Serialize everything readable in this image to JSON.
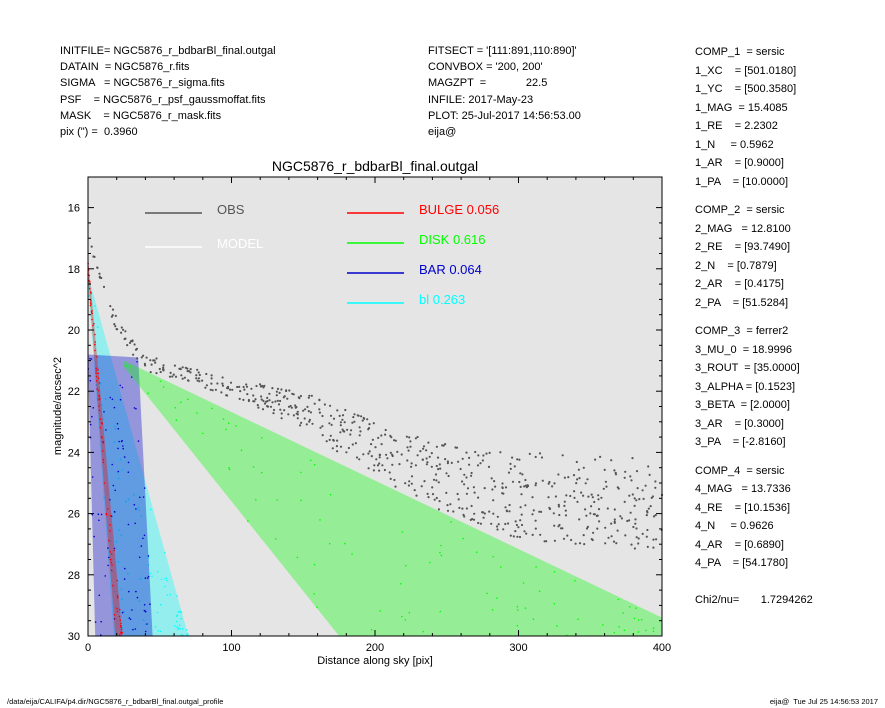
{
  "header_left": [
    "INITFILE= NGC5876_r_bdbarBl_final.outgal",
    "DATAIN  = NGC5876_r.fits",
    "SIGMA   = NGC5876_r_sigma.fits",
    "PSF    = NGC5876_r_psf_gaussmoffat.fits",
    "MASK    = NGC5876_r_mask.fits",
    "pix (\") =  0.3960"
  ],
  "header_mid": [
    "FITSECT = '[111:891,110:890]'",
    "CONVBOX = '200, 200'",
    "MAGZPT  =             22.5",
    "INFILE: 2017-May-23",
    "PLOT: 25-Jul-2017 14:56:53.00",
    "eija@"
  ],
  "components": [
    [
      "COMP_1  = sersic",
      "1_XC    = [501.0180]",
      "1_YC    = [500.3580]",
      "1_MAG  = 15.4085",
      "1_RE    = 2.2302",
      "1_N     = 0.5962",
      "1_AR    = [0.9000]",
      "1_PA    = [10.0000]"
    ],
    [
      "COMP_2  = sersic",
      "2_MAG   = 12.8100",
      "2_RE    = [93.7490]",
      "2_N    = [0.7879]",
      "2_AR    = [0.4175]",
      "2_PA    = [51.5284]"
    ],
    [
      "COMP_3  = ferrer2",
      "3_MU_0  = 18.9996",
      "3_ROUT  = [35.0000]",
      "3_ALPHA = [0.1523]",
      "3_BETA  = [2.0000]",
      "3_AR    = [0.3000]",
      "3_PA    = [-2.8160]"
    ],
    [
      "COMP_4  = sersic",
      "4_MAG   = 13.7336",
      "4_RE    = [10.1536]",
      "4_N     = 0.9626",
      "4_AR    = [0.6890]",
      "4_PA    = [54.1780]"
    ]
  ],
  "chi2": "Chi2/nu=       1.7294262",
  "footer_left": "/data/eija/CALIFA/p4.dir/NGC5876_r_bdbarBl_final.outgal_profile",
  "footer_right": "eija@  Tue Jul 25 14:56:53 2017",
  "colors": {
    "plot_bg": "#e5e5e5",
    "obs": "#555555",
    "model": "#ffffff",
    "bulge": "#ff0000",
    "disk": "#00ff00",
    "bar": "#0000cc",
    "bl": "#00ffff"
  },
  "chart_data": {
    "type": "scatter",
    "title": "NGC5876_r_bdbarBl_final.outgal",
    "xlabel": "Distance along sky [pix]",
    "ylabel": "magnitude/arcsec^2",
    "xlim": [
      0,
      400
    ],
    "ylim": [
      30,
      15
    ],
    "y_inverted": true,
    "xticks": [
      0,
      100,
      200,
      300,
      400
    ],
    "yticks": [
      16,
      18,
      20,
      22,
      24,
      26,
      28,
      30
    ],
    "grid": false,
    "legend_placement": "top",
    "legend": [
      {
        "name": "OBS",
        "color_key": "obs"
      },
      {
        "name": "MODEL",
        "color_key": "model"
      },
      {
        "name": "BULGE",
        "value": "0.056",
        "color_key": "bulge"
      },
      {
        "name": "DISK",
        "value": "0.616",
        "color_key": "disk"
      },
      {
        "name": "BAR",
        "value": "0.064",
        "color_key": "bar"
      },
      {
        "name": "bl",
        "value": "0.263",
        "color_key": "bl"
      }
    ],
    "series": [
      {
        "name": "BULGE",
        "color_key": "bulge",
        "envelope_lower": [
          [
            0,
            17.6
          ],
          [
            24,
            30
          ]
        ],
        "envelope_upper": [
          [
            0,
            18.2
          ],
          [
            19,
            30
          ]
        ]
      },
      {
        "name": "DISK",
        "color_key": "disk",
        "envelope_lower": [
          [
            25,
            21.0
          ],
          [
            400,
            29.4
          ]
        ],
        "envelope_upper": [
          [
            25,
            21.2
          ],
          [
            175,
            30
          ],
          [
            400,
            30
          ]
        ]
      },
      {
        "name": "BAR",
        "color_key": "bar",
        "envelope_lower": [
          [
            0,
            20.8
          ],
          [
            35,
            20.9
          ],
          [
            45,
            30
          ]
        ],
        "envelope_upper": [
          [
            0,
            21.0
          ],
          [
            5,
            30
          ]
        ]
      },
      {
        "name": "bl",
        "color_key": "bl",
        "envelope_lower": [
          [
            0,
            18.2
          ],
          [
            70,
            30
          ]
        ],
        "envelope_upper": [
          [
            0,
            18.4
          ],
          [
            18,
            30
          ]
        ]
      },
      {
        "name": "OBS",
        "color_key": "obs",
        "profile": [
          [
            0,
            16.8
          ],
          [
            10,
            18.6
          ],
          [
            20,
            19.8
          ],
          [
            30,
            20.5
          ],
          [
            40,
            21.1
          ],
          [
            60,
            21.3
          ],
          [
            100,
            21.9
          ],
          [
            150,
            22.6
          ],
          [
            180,
            23.4
          ],
          [
            220,
            24.4
          ],
          [
            260,
            25.0
          ],
          [
            300,
            25.4
          ],
          [
            350,
            25.6
          ],
          [
            400,
            25.6
          ]
        ],
        "scatter_width": [
          [
            0,
            0.2
          ],
          [
            100,
            0.3
          ],
          [
            200,
            0.9
          ],
          [
            300,
            1.4
          ],
          [
            400,
            1.6
          ]
        ]
      }
    ]
  }
}
